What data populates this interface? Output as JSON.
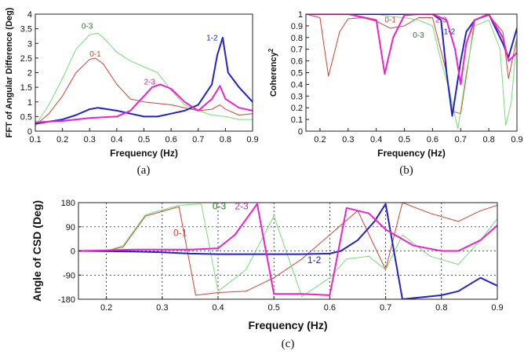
{
  "colors": {
    "s01": "#cc4433",
    "s03": "#77dd77",
    "s12": "#2222cc",
    "s23": "#ee22cc"
  },
  "chart_data": [
    {
      "type": "line",
      "caption": "(a)",
      "xlabel": "Frequency (Hz)",
      "ylabel": "FFT of Angular Difference (Deg)",
      "xlim": [
        0.1,
        0.9
      ],
      "ylim": [
        0,
        4
      ],
      "xticks": [
        0.1,
        0.2,
        0.3,
        0.4,
        0.5,
        0.6,
        0.7,
        0.8,
        0.9
      ],
      "yticks": [
        0,
        0.5,
        1,
        1.5,
        2,
        2.5,
        3,
        3.5,
        4
      ],
      "xtick_labels": [
        "0.1",
        "0.2",
        "0.3",
        "0.4",
        "0.5",
        "0.6",
        "0.7",
        "0.8",
        "0.9"
      ],
      "ytick_labels": [
        "0",
        "0.5",
        "1",
        "1.5",
        "2",
        "2.5",
        "3",
        "3.5",
        "4"
      ],
      "grid": false,
      "series": [
        {
          "name": "0-1",
          "color": "#cc4433",
          "width": 1,
          "x": [
            0.1,
            0.15,
            0.2,
            0.25,
            0.3,
            0.32,
            0.35,
            0.4,
            0.45,
            0.5,
            0.55,
            0.6,
            0.65,
            0.7,
            0.75,
            0.78,
            0.8,
            0.85,
            0.9
          ],
          "y": [
            0.2,
            0.6,
            1.2,
            2.0,
            2.45,
            2.5,
            2.3,
            1.6,
            1.1,
            1.0,
            0.95,
            0.9,
            0.8,
            0.7,
            0.75,
            0.9,
            0.75,
            0.55,
            0.6
          ]
        },
        {
          "name": "0-3",
          "color": "#77dd77",
          "width": 1,
          "x": [
            0.1,
            0.15,
            0.2,
            0.25,
            0.3,
            0.33,
            0.35,
            0.4,
            0.45,
            0.5,
            0.55,
            0.6,
            0.65,
            0.7,
            0.75,
            0.8,
            0.85,
            0.9
          ],
          "y": [
            0.2,
            0.9,
            1.8,
            2.8,
            3.3,
            3.35,
            3.2,
            2.7,
            2.4,
            2.2,
            2.0,
            1.4,
            0.9,
            0.7,
            0.55,
            0.5,
            0.4,
            0.4
          ]
        },
        {
          "name": "1-2",
          "color": "#2222cc",
          "width": 2,
          "x": [
            0.1,
            0.2,
            0.25,
            0.3,
            0.33,
            0.4,
            0.45,
            0.5,
            0.55,
            0.6,
            0.65,
            0.7,
            0.75,
            0.77,
            0.79,
            0.81,
            0.85,
            0.9
          ],
          "y": [
            0.25,
            0.4,
            0.55,
            0.75,
            0.8,
            0.7,
            0.6,
            0.5,
            0.5,
            0.6,
            0.7,
            0.9,
            1.6,
            2.6,
            3.2,
            2.0,
            1.5,
            1.0
          ]
        },
        {
          "name": "2-3",
          "color": "#ee22cc",
          "width": 2,
          "x": [
            0.1,
            0.2,
            0.3,
            0.4,
            0.45,
            0.5,
            0.53,
            0.56,
            0.6,
            0.65,
            0.7,
            0.75,
            0.78,
            0.8,
            0.85,
            0.9
          ],
          "y": [
            0.3,
            0.35,
            0.45,
            0.5,
            0.7,
            1.2,
            1.5,
            1.6,
            1.45,
            1.0,
            0.7,
            1.1,
            1.55,
            1.1,
            0.8,
            0.7
          ]
        }
      ],
      "annotations": [
        {
          "text": "0-3",
          "x": 0.27,
          "y": 3.5,
          "color": "#227722"
        },
        {
          "text": "0-1",
          "x": 0.3,
          "y": 2.55,
          "color": "#cc4433"
        },
        {
          "text": "2-3",
          "x": 0.5,
          "y": 1.6,
          "color": "#cc22aa"
        },
        {
          "text": "1-2",
          "x": 0.73,
          "y": 3.1,
          "color": "#2222cc"
        }
      ]
    },
    {
      "type": "line",
      "caption": "(b)",
      "xlabel": "Frequency (Hz)",
      "ylabel": "Coherency",
      "ylabel_superscript": "2",
      "xlim": [
        0.15,
        0.9
      ],
      "ylim": [
        0,
        1
      ],
      "xticks": [
        0.2,
        0.3,
        0.4,
        0.5,
        0.6,
        0.7,
        0.8,
        0.9
      ],
      "yticks": [
        0,
        0.1,
        0.2,
        0.3,
        0.4,
        0.5,
        0.6,
        0.7,
        0.8,
        0.9,
        1
      ],
      "xtick_labels": [
        "0.2",
        "0.3",
        "0.4",
        "0.5",
        "0.6",
        "0.7",
        "0.8",
        "0.9"
      ],
      "ytick_labels": [
        "0",
        "0.1",
        "0.2",
        "0.3",
        "0.4",
        "0.5",
        "0.6",
        "0.7",
        "0.8",
        "0.9",
        "1"
      ],
      "grid": false,
      "series": [
        {
          "name": "0-1",
          "color": "#cc4433",
          "width": 1,
          "x": [
            0.15,
            0.2,
            0.23,
            0.27,
            0.3,
            0.35,
            0.4,
            0.45,
            0.5,
            0.55,
            0.6,
            0.65,
            0.67,
            0.7,
            0.75,
            0.8,
            0.85,
            0.87,
            0.9
          ],
          "y": [
            1.0,
            0.97,
            0.47,
            0.85,
            0.96,
            0.97,
            0.94,
            0.88,
            0.9,
            0.97,
            0.97,
            0.5,
            0.17,
            0.15,
            0.95,
            0.99,
            0.85,
            0.45,
            0.8
          ]
        },
        {
          "name": "0-3",
          "color": "#77dd77",
          "width": 1,
          "x": [
            0.15,
            0.3,
            0.4,
            0.45,
            0.5,
            0.55,
            0.6,
            0.63,
            0.66,
            0.69,
            0.72,
            0.75,
            0.8,
            0.84,
            0.86,
            0.88,
            0.9
          ],
          "y": [
            1.0,
            1.0,
            1.0,
            0.98,
            0.97,
            0.95,
            0.9,
            0.6,
            0.35,
            0.02,
            0.5,
            0.9,
            0.95,
            0.7,
            0.05,
            0.25,
            0.8
          ]
        },
        {
          "name": "1-2",
          "color": "#2222cc",
          "width": 2,
          "x": [
            0.15,
            0.3,
            0.4,
            0.5,
            0.55,
            0.6,
            0.63,
            0.65,
            0.67,
            0.7,
            0.72,
            0.75,
            0.8,
            0.85,
            0.87,
            0.9
          ],
          "y": [
            1.0,
            1.0,
            1.0,
            1.0,
            1.0,
            1.0,
            0.95,
            0.5,
            0.13,
            0.6,
            0.85,
            0.95,
            1.0,
            0.75,
            0.63,
            0.88
          ]
        },
        {
          "name": "2-3",
          "color": "#ee22cc",
          "width": 2,
          "x": [
            0.15,
            0.3,
            0.4,
            0.43,
            0.46,
            0.5,
            0.55,
            0.6,
            0.65,
            0.68,
            0.7,
            0.72,
            0.75,
            0.8,
            0.85,
            0.87,
            0.9
          ],
          "y": [
            1.0,
            1.0,
            0.95,
            0.49,
            0.8,
            0.99,
            1.0,
            1.0,
            0.95,
            0.7,
            0.4,
            0.75,
            0.95,
            1.0,
            0.8,
            0.6,
            0.67
          ]
        }
      ],
      "annotations": [
        {
          "text": "0-1",
          "x": 0.43,
          "y": 0.93,
          "color": "#cc4433"
        },
        {
          "text": "0-3",
          "x": 0.53,
          "y": 0.8,
          "color": "#227722"
        },
        {
          "text": "2-3",
          "x": 0.61,
          "y": 0.93,
          "color": "#cc22aa"
        },
        {
          "text": "1-2",
          "x": 0.64,
          "y": 0.83,
          "color": "#2222cc"
        }
      ]
    },
    {
      "type": "line",
      "caption": "(c)",
      "xlabel": "Frequency (Hz)",
      "ylabel": "Angle of CSD (Deg)",
      "xlim": [
        0.15,
        0.9
      ],
      "ylim": [
        -180,
        180
      ],
      "xticks": [
        0.2,
        0.3,
        0.4,
        0.5,
        0.6,
        0.7,
        0.8,
        0.9
      ],
      "yticks": [
        -180,
        -90,
        0,
        90,
        180
      ],
      "xtick_labels": [
        "0.2",
        "0.3",
        "0.4",
        "0.5",
        "0.6",
        "0.7",
        "0.8",
        "0.9"
      ],
      "ytick_labels": [
        "-180",
        "-90",
        "0",
        "90",
        "180"
      ],
      "grid": true,
      "series": [
        {
          "name": "0-1",
          "color": "#cc4433",
          "width": 1,
          "x": [
            0.15,
            0.2,
            0.23,
            0.27,
            0.33,
            0.36,
            0.4,
            0.45,
            0.5,
            0.55,
            0.6,
            0.65,
            0.7,
            0.73,
            0.78,
            0.83,
            0.87,
            0.9
          ],
          "y": [
            0,
            0,
            15,
            130,
            165,
            -165,
            -155,
            -150,
            -100,
            -30,
            60,
            150,
            -70,
            180,
            140,
            110,
            150,
            170
          ]
        },
        {
          "name": "0-3",
          "color": "#77dd77",
          "width": 1,
          "x": [
            0.15,
            0.2,
            0.23,
            0.27,
            0.33,
            0.37,
            0.4,
            0.45,
            0.5,
            0.55,
            0.6,
            0.63,
            0.67,
            0.7,
            0.73,
            0.78,
            0.83,
            0.87,
            0.9
          ],
          "y": [
            0,
            0,
            20,
            135,
            170,
            175,
            -150,
            -70,
            130,
            -170,
            -100,
            -30,
            -20,
            -70,
            60,
            -20,
            -50,
            40,
            120
          ]
        },
        {
          "name": "1-2",
          "color": "#2222cc",
          "width": 2,
          "x": [
            0.15,
            0.25,
            0.3,
            0.35,
            0.4,
            0.45,
            0.5,
            0.55,
            0.6,
            0.62,
            0.65,
            0.68,
            0.7,
            0.73,
            0.8,
            0.83,
            0.87,
            0.9
          ],
          "y": [
            0,
            -2,
            -5,
            -10,
            -12,
            -12,
            -12,
            -12,
            -10,
            0,
            40,
            110,
            175,
            -180,
            -165,
            -150,
            -100,
            -130
          ]
        },
        {
          "name": "2-3",
          "color": "#ee22cc",
          "width": 2,
          "x": [
            0.15,
            0.25,
            0.3,
            0.35,
            0.4,
            0.43,
            0.47,
            0.5,
            0.55,
            0.6,
            0.63,
            0.67,
            0.7,
            0.75,
            0.8,
            0.83,
            0.87,
            0.9
          ],
          "y": [
            0,
            5,
            5,
            5,
            10,
            60,
            175,
            -160,
            -160,
            -165,
            160,
            140,
            80,
            20,
            0,
            0,
            40,
            95
          ]
        }
      ],
      "annotations": [
        {
          "text": "0-3",
          "x": 0.39,
          "y": 155,
          "color": "#227722"
        },
        {
          "text": "2-3",
          "x": 0.43,
          "y": 155,
          "color": "#cc22aa"
        },
        {
          "text": "0-1",
          "x": 0.32,
          "y": 55,
          "color": "#cc4433"
        },
        {
          "text": "1-2",
          "x": 0.56,
          "y": -45,
          "color": "#2222cc"
        }
      ]
    }
  ]
}
